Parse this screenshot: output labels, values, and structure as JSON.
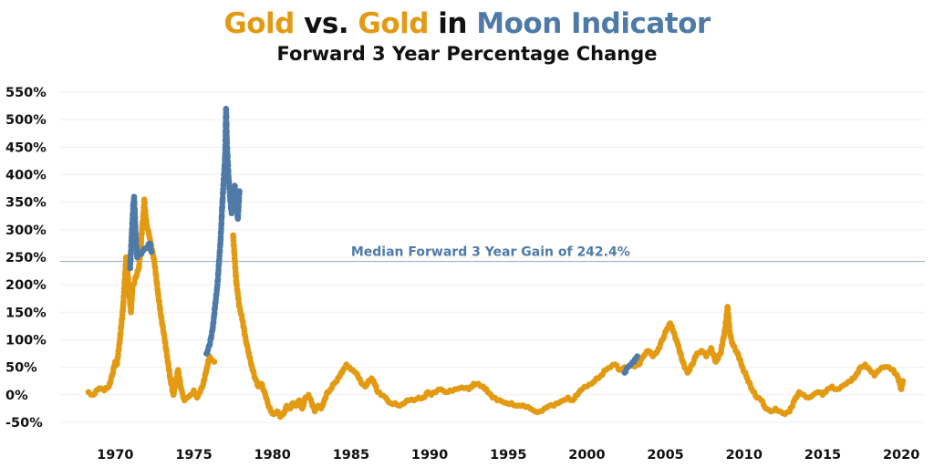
{
  "colors": {
    "gold": "#E39A13",
    "moon": "#4F7AA8",
    "text": "#111111",
    "grid": "#EFEFEF",
    "median_line": "#9DB3C8"
  },
  "title_parts": [
    {
      "text": "Gold",
      "color_key": "gold"
    },
    {
      "text": " vs. ",
      "color_key": "text"
    },
    {
      "text": "Gold",
      "color_key": "gold"
    },
    {
      "text": " in ",
      "color_key": "text"
    },
    {
      "text": "Moon Indicator",
      "color_key": "moon"
    }
  ],
  "chart_data": {
    "type": "scatter",
    "title": "Gold vs. Gold in Moon Indicator",
    "subtitle": "Forward 3 Year Percentage Change",
    "xlabel": "",
    "ylabel": "",
    "xlim": [
      1966.5,
      2021.5
    ],
    "ylim": [
      -0.75,
      5.75
    ],
    "y_format": "percent",
    "x_ticks": [
      1970,
      1975,
      1980,
      1985,
      1990,
      1995,
      2000,
      2005,
      2010,
      2015,
      2020
    ],
    "y_ticks": [
      -0.5,
      0,
      0.5,
      1,
      1.5,
      2,
      2.5,
      3,
      3.5,
      4,
      4.5,
      5,
      5.5
    ],
    "x_tick_labels": [
      "1970",
      "1975",
      "1980",
      "1985",
      "1990",
      "1995",
      "2000",
      "2005",
      "2010",
      "2015",
      "2020"
    ],
    "y_tick_labels": [
      "-50%",
      "0%",
      "50%",
      "100%",
      "150%",
      "200%",
      "250%",
      "300%",
      "350%",
      "400%",
      "450%",
      "500%",
      "550%"
    ],
    "grid": true,
    "legend": "none",
    "annotations": [
      {
        "text": "Median Forward 3 Year Gain of 242.4%",
        "y": 2.424,
        "x": 1985.0
      }
    ],
    "series": [
      {
        "color_key": "gold",
        "points": [
          [
            1968.3,
            0.05
          ],
          [
            1968.6,
            0.0
          ],
          [
            1969.0,
            0.12
          ],
          [
            1969.3,
            0.08
          ],
          [
            1969.6,
            0.15
          ],
          [
            1969.8,
            0.35
          ],
          [
            1970.0,
            0.6
          ],
          [
            1970.1,
            0.55
          ],
          [
            1970.3,
            1.0
          ],
          [
            1970.4,
            1.3
          ],
          [
            1970.5,
            1.6
          ],
          [
            1970.6,
            2.05
          ],
          [
            1970.7,
            2.5
          ],
          [
            1970.8,
            2.2
          ],
          [
            1970.9,
            1.8
          ],
          [
            1971.0,
            1.5
          ],
          [
            1971.1,
            1.95
          ],
          [
            1971.5,
            2.3
          ],
          [
            1971.6,
            2.6
          ],
          [
            1971.7,
            3.0
          ],
          [
            1971.8,
            3.3
          ],
          [
            1971.85,
            3.55
          ],
          [
            1971.9,
            3.35
          ],
          [
            1972.0,
            3.1
          ],
          [
            1972.2,
            2.85
          ],
          [
            1972.5,
            2.4
          ],
          [
            1972.7,
            1.9
          ],
          [
            1972.9,
            1.45
          ],
          [
            1973.1,
            1.1
          ],
          [
            1973.3,
            0.7
          ],
          [
            1973.5,
            0.3
          ],
          [
            1973.7,
            0.0
          ],
          [
            1973.9,
            0.3
          ],
          [
            1974.0,
            0.45
          ],
          [
            1974.2,
            0.1
          ],
          [
            1974.4,
            -0.1
          ],
          [
            1974.6,
            -0.05
          ],
          [
            1974.8,
            0.0
          ],
          [
            1975.0,
            0.08
          ],
          [
            1975.2,
            -0.05
          ],
          [
            1975.4,
            0.05
          ],
          [
            1975.6,
            0.2
          ],
          [
            1975.8,
            0.45
          ],
          [
            1976.0,
            0.7
          ],
          [
            1976.3,
            0.6
          ],
          [
            1977.5,
            2.9
          ],
          [
            1977.7,
            2.05
          ],
          [
            1977.9,
            1.6
          ],
          [
            1978.1,
            1.35
          ],
          [
            1978.3,
            1.0
          ],
          [
            1978.5,
            0.75
          ],
          [
            1978.7,
            0.5
          ],
          [
            1978.9,
            0.3
          ],
          [
            1979.1,
            0.15
          ],
          [
            1979.3,
            0.2
          ],
          [
            1979.5,
            0.05
          ],
          [
            1979.7,
            -0.15
          ],
          [
            1979.9,
            -0.3
          ],
          [
            1980.1,
            -0.35
          ],
          [
            1980.3,
            -0.3
          ],
          [
            1980.5,
            -0.4
          ],
          [
            1980.7,
            -0.35
          ],
          [
            1980.9,
            -0.2
          ],
          [
            1981.1,
            -0.25
          ],
          [
            1981.3,
            -0.15
          ],
          [
            1981.5,
            -0.2
          ],
          [
            1981.7,
            -0.1
          ],
          [
            1981.9,
            -0.25
          ],
          [
            1982.1,
            -0.05
          ],
          [
            1982.3,
            0.0
          ],
          [
            1982.5,
            -0.15
          ],
          [
            1982.7,
            -0.3
          ],
          [
            1982.9,
            -0.2
          ],
          [
            1983.1,
            -0.25
          ],
          [
            1983.3,
            -0.1
          ],
          [
            1983.5,
            0.05
          ],
          [
            1983.7,
            0.1
          ],
          [
            1983.9,
            0.2
          ],
          [
            1984.1,
            0.25
          ],
          [
            1984.3,
            0.35
          ],
          [
            1984.5,
            0.45
          ],
          [
            1984.7,
            0.55
          ],
          [
            1984.9,
            0.5
          ],
          [
            1985.1,
            0.45
          ],
          [
            1985.3,
            0.4
          ],
          [
            1985.5,
            0.3
          ],
          [
            1985.7,
            0.2
          ],
          [
            1985.9,
            0.15
          ],
          [
            1986.1,
            0.25
          ],
          [
            1986.3,
            0.3
          ],
          [
            1986.5,
            0.2
          ],
          [
            1986.7,
            0.05
          ],
          [
            1986.9,
            0.0
          ],
          [
            1987.2,
            -0.05
          ],
          [
            1987.5,
            -0.15
          ],
          [
            1987.8,
            -0.15
          ],
          [
            1988.1,
            -0.2
          ],
          [
            1988.4,
            -0.15
          ],
          [
            1988.7,
            -0.1
          ],
          [
            1989.0,
            -0.1
          ],
          [
            1989.3,
            -0.05
          ],
          [
            1989.6,
            -0.05
          ],
          [
            1989.9,
            0.05
          ],
          [
            1990.1,
            0.0
          ],
          [
            1990.4,
            0.05
          ],
          [
            1990.7,
            0.1
          ],
          [
            1991.0,
            0.05
          ],
          [
            1991.3,
            0.08
          ],
          [
            1991.6,
            0.1
          ],
          [
            1991.9,
            0.12
          ],
          [
            1992.2,
            0.12
          ],
          [
            1992.5,
            0.1
          ],
          [
            1992.8,
            0.2
          ],
          [
            1993.1,
            0.2
          ],
          [
            1993.4,
            0.15
          ],
          [
            1993.7,
            0.05
          ],
          [
            1994.0,
            -0.05
          ],
          [
            1994.3,
            -0.1
          ],
          [
            1994.6,
            -0.12
          ],
          [
            1994.9,
            -0.15
          ],
          [
            1995.2,
            -0.15
          ],
          [
            1995.5,
            -0.2
          ],
          [
            1995.8,
            -0.2
          ],
          [
            1996.1,
            -0.22
          ],
          [
            1996.4,
            -0.25
          ],
          [
            1996.7,
            -0.3
          ],
          [
            1997.0,
            -0.3
          ],
          [
            1997.3,
            -0.25
          ],
          [
            1997.6,
            -0.2
          ],
          [
            1997.9,
            -0.2
          ],
          [
            1998.2,
            -0.15
          ],
          [
            1998.5,
            -0.1
          ],
          [
            1998.8,
            -0.05
          ],
          [
            1999.1,
            -0.1
          ],
          [
            1999.4,
            0.0
          ],
          [
            1999.7,
            0.1
          ],
          [
            2000.0,
            0.15
          ],
          [
            2000.3,
            0.2
          ],
          [
            2000.6,
            0.3
          ],
          [
            2000.9,
            0.35
          ],
          [
            2001.2,
            0.45
          ],
          [
            2001.5,
            0.5
          ],
          [
            2001.8,
            0.55
          ],
          [
            2002.1,
            0.45
          ],
          [
            2002.4,
            0.5
          ],
          [
            2003.3,
            0.55
          ],
          [
            2003.6,
            0.7
          ],
          [
            2003.9,
            0.8
          ],
          [
            2004.2,
            0.7
          ],
          [
            2004.5,
            0.8
          ],
          [
            2004.8,
            1.0
          ],
          [
            2005.1,
            1.2
          ],
          [
            2005.3,
            1.3
          ],
          [
            2005.5,
            1.15
          ],
          [
            2005.8,
            0.9
          ],
          [
            2006.1,
            0.6
          ],
          [
            2006.4,
            0.4
          ],
          [
            2006.7,
            0.55
          ],
          [
            2007.0,
            0.75
          ],
          [
            2007.3,
            0.8
          ],
          [
            2007.6,
            0.7
          ],
          [
            2007.9,
            0.85
          ],
          [
            2008.2,
            0.6
          ],
          [
            2008.5,
            0.75
          ],
          [
            2008.8,
            1.2
          ],
          [
            2008.95,
            1.6
          ],
          [
            2009.1,
            1.1
          ],
          [
            2009.3,
            0.9
          ],
          [
            2009.6,
            0.75
          ],
          [
            2009.9,
            0.5
          ],
          [
            2010.2,
            0.3
          ],
          [
            2010.5,
            0.1
          ],
          [
            2010.8,
            -0.05
          ],
          [
            2011.1,
            -0.1
          ],
          [
            2011.4,
            -0.25
          ],
          [
            2011.7,
            -0.3
          ],
          [
            2012.0,
            -0.25
          ],
          [
            2012.3,
            -0.3
          ],
          [
            2012.6,
            -0.35
          ],
          [
            2012.9,
            -0.3
          ],
          [
            2013.2,
            -0.1
          ],
          [
            2013.5,
            0.05
          ],
          [
            2013.8,
            0.0
          ],
          [
            2014.1,
            -0.05
          ],
          [
            2014.4,
            0.0
          ],
          [
            2014.7,
            0.05
          ],
          [
            2015.0,
            0.0
          ],
          [
            2015.3,
            0.1
          ],
          [
            2015.6,
            0.15
          ],
          [
            2015.9,
            0.1
          ],
          [
            2016.2,
            0.15
          ],
          [
            2016.5,
            0.2
          ],
          [
            2016.8,
            0.25
          ],
          [
            2017.1,
            0.35
          ],
          [
            2017.4,
            0.5
          ],
          [
            2017.7,
            0.55
          ],
          [
            2018.0,
            0.45
          ],
          [
            2018.3,
            0.35
          ],
          [
            2018.6,
            0.45
          ],
          [
            2018.9,
            0.5
          ],
          [
            2019.2,
            0.5
          ],
          [
            2019.5,
            0.45
          ],
          [
            2019.8,
            0.3
          ],
          [
            2020.0,
            0.1
          ],
          [
            2020.1,
            0.25
          ]
        ]
      },
      {
        "color_key": "moon",
        "points": [
          [
            1970.95,
            2.3
          ],
          [
            1971.0,
            2.6
          ],
          [
            1971.05,
            2.9
          ],
          [
            1971.1,
            3.2
          ],
          [
            1971.15,
            3.45
          ],
          [
            1971.2,
            3.6
          ],
          [
            1971.25,
            3.3
          ],
          [
            1971.3,
            2.9
          ],
          [
            1971.35,
            2.7
          ],
          [
            1971.4,
            2.5
          ],
          [
            1972.2,
            2.75
          ],
          [
            1972.3,
            2.6
          ],
          [
            1975.8,
            0.75
          ],
          [
            1976.0,
            0.9
          ],
          [
            1976.2,
            1.2
          ],
          [
            1976.35,
            1.6
          ],
          [
            1976.5,
            2.0
          ],
          [
            1976.6,
            2.4
          ],
          [
            1976.7,
            2.8
          ],
          [
            1976.8,
            3.4
          ],
          [
            1976.9,
            3.9
          ],
          [
            1977.0,
            4.4
          ],
          [
            1977.05,
            5.2
          ],
          [
            1977.1,
            4.6
          ],
          [
            1977.2,
            4.0
          ],
          [
            1977.3,
            3.6
          ],
          [
            1977.4,
            3.3
          ],
          [
            1977.5,
            3.5
          ],
          [
            1977.6,
            3.8
          ],
          [
            1977.7,
            3.5
          ],
          [
            1977.8,
            3.2
          ],
          [
            1977.9,
            3.7
          ],
          [
            2002.4,
            0.4
          ],
          [
            2002.6,
            0.5
          ],
          [
            2002.8,
            0.55
          ],
          [
            2003.0,
            0.6
          ],
          [
            2003.2,
            0.7
          ]
        ]
      }
    ]
  }
}
